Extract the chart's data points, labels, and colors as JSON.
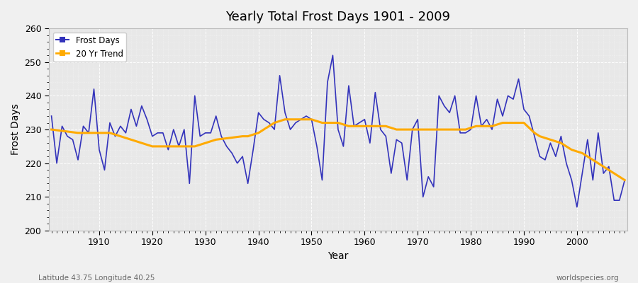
{
  "title": "Yearly Total Frost Days 1901 - 2009",
  "xlabel": "Year",
  "ylabel": "Frost Days",
  "subtitle_left": "Latitude 43.75 Longitude 40.25",
  "subtitle_right": "worldspecies.org",
  "xlim": [
    1901,
    2009
  ],
  "ylim": [
    200,
    260
  ],
  "yticks": [
    200,
    210,
    220,
    230,
    240,
    250,
    260
  ],
  "xticks": [
    1910,
    1920,
    1930,
    1940,
    1950,
    1960,
    1970,
    1980,
    1990,
    2000
  ],
  "frost_color": "#3333bb",
  "trend_color": "#ffaa00",
  "bg_color": "#f0f0f0",
  "plot_bg_color": "#e8e8e8",
  "grid_color": "#ffffff",
  "frost_days": [
    234,
    220,
    231,
    228,
    227,
    221,
    231,
    229,
    242,
    224,
    218,
    232,
    228,
    231,
    229,
    236,
    231,
    237,
    233,
    228,
    229,
    229,
    224,
    230,
    225,
    230,
    214,
    240,
    228,
    229,
    229,
    234,
    228,
    225,
    223,
    220,
    222,
    214,
    224,
    235,
    233,
    232,
    230,
    246,
    235,
    230,
    232,
    233,
    234,
    233,
    225,
    215,
    244,
    252,
    230,
    225,
    243,
    231,
    232,
    233,
    226,
    241,
    230,
    228,
    217,
    227,
    226,
    215,
    230,
    233,
    210,
    216,
    213,
    240,
    237,
    235,
    240,
    229,
    229,
    230,
    240,
    231,
    233,
    230,
    239,
    234,
    240,
    239,
    245,
    236,
    234,
    228,
    222,
    221,
    226,
    222,
    228,
    220,
    215,
    207,
    217,
    227,
    215,
    229,
    217,
    219,
    209,
    209,
    215
  ],
  "trend_values": [
    230.0,
    229.8,
    229.6,
    229.4,
    229.2,
    229.0,
    229.0,
    229.0,
    229.0,
    229.0,
    229.0,
    229.0,
    228.5,
    228.0,
    227.5,
    227.0,
    226.5,
    226.0,
    225.5,
    225.0,
    225.0,
    225.0,
    225.0,
    225.0,
    225.0,
    225.0,
    225.0,
    225.0,
    225.5,
    226.0,
    226.5,
    227.0,
    227.2,
    227.4,
    227.6,
    227.8,
    228.0,
    228.0,
    228.5,
    229.0,
    230.0,
    231.0,
    232.0,
    232.5,
    233.0,
    233.0,
    233.0,
    233.0,
    233.0,
    233.0,
    232.5,
    232.0,
    232.0,
    232.0,
    232.0,
    231.5,
    231.0,
    231.0,
    231.0,
    231.0,
    231.0,
    231.0,
    231.0,
    231.0,
    230.5,
    230.0,
    230.0,
    230.0,
    230.0,
    230.0,
    230.0,
    230.0,
    230.0,
    230.0,
    230.0,
    230.0,
    230.0,
    230.0,
    230.0,
    230.5,
    231.0,
    231.0,
    231.0,
    231.0,
    231.5,
    232.0,
    232.0,
    232.0,
    232.0,
    232.0,
    230.5,
    229.0,
    228.0,
    227.5,
    227.0,
    226.5,
    226.0,
    225.0,
    224.0,
    223.5,
    223.0,
    222.0,
    221.0,
    220.0,
    219.0,
    218.0,
    217.0,
    216.0,
    215.0
  ]
}
